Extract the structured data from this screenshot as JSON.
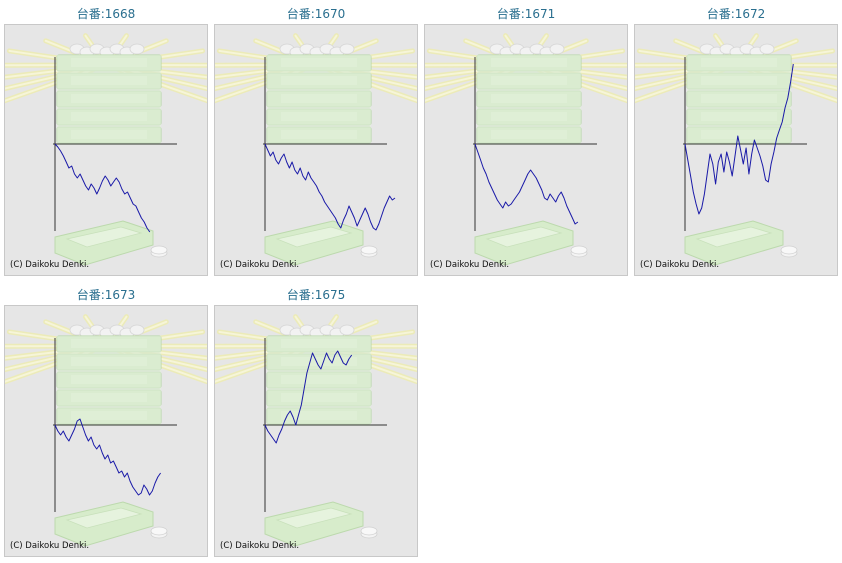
{
  "copyright": "(C) Daikoku Denki.",
  "colors": {
    "title": "#2a6f8f",
    "line": "#1a1aa8",
    "panel_bg": "#e6e6e6"
  },
  "chart_data": [
    {
      "type": "line",
      "title": "台番:1668",
      "y": [
        0,
        -3,
        -7,
        -12,
        -18,
        -24,
        -22,
        -30,
        -34,
        -30,
        -36,
        -42,
        -46,
        -40,
        -44,
        -50,
        -44,
        -37,
        -32,
        -36,
        -42,
        -38,
        -34,
        -38,
        -45,
        -50,
        -48,
        -54,
        -60,
        -62,
        -68,
        -74,
        -78,
        -84,
        -88
      ]
    },
    {
      "type": "line",
      "title": "台番:1670",
      "y": [
        0,
        -6,
        -12,
        -8,
        -16,
        -20,
        -14,
        -10,
        -18,
        -24,
        -18,
        -26,
        -30,
        -24,
        -32,
        -36,
        -28,
        -34,
        -38,
        -42,
        -48,
        -52,
        -58,
        -62,
        -66,
        -70,
        -74,
        -80,
        -84,
        -76,
        -70,
        -62,
        -68,
        -74,
        -82,
        -76,
        -70,
        -64,
        -70,
        -78,
        -84,
        -86,
        -80,
        -72,
        -64,
        -58,
        -52,
        -56,
        -54
      ]
    },
    {
      "type": "line",
      "title": "台番:1671",
      "y": [
        0,
        -8,
        -16,
        -24,
        -30,
        -38,
        -44,
        -50,
        -56,
        -60,
        -64,
        -58,
        -62,
        -60,
        -56,
        -52,
        -48,
        -42,
        -36,
        -30,
        -26,
        -30,
        -34,
        -40,
        -46,
        -54,
        -56,
        -50,
        -54,
        -58,
        -52,
        -48,
        -54,
        -62,
        -68,
        -74,
        -80,
        -78
      ]
    },
    {
      "type": "line",
      "title": "台番:1672",
      "y": [
        0,
        -16,
        -32,
        -48,
        -60,
        -70,
        -64,
        -50,
        -30,
        -10,
        -20,
        -40,
        -18,
        -10,
        -28,
        -8,
        -18,
        -32,
        -12,
        8,
        -6,
        -20,
        -4,
        -30,
        -10,
        4,
        -4,
        -12,
        -22,
        -36,
        -38,
        -20,
        -8,
        6,
        14,
        22,
        36,
        46,
        62,
        80
      ]
    },
    {
      "type": "line",
      "title": "台番:1673",
      "y": [
        0,
        -6,
        -10,
        -6,
        -12,
        -16,
        -10,
        -4,
        4,
        6,
        -2,
        -10,
        -16,
        -12,
        -20,
        -24,
        -20,
        -28,
        -34,
        -30,
        -38,
        -36,
        -42,
        -48,
        -46,
        -52,
        -48,
        -56,
        -62,
        -66,
        -70,
        -68,
        -60,
        -64,
        -70,
        -66,
        -58,
        -52,
        -48
      ]
    },
    {
      "type": "line",
      "title": "台番:1675",
      "y": [
        0,
        -6,
        -10,
        -14,
        -18,
        -10,
        -4,
        4,
        10,
        14,
        8,
        0,
        10,
        20,
        36,
        52,
        62,
        72,
        66,
        60,
        56,
        64,
        72,
        66,
        62,
        70,
        74,
        68,
        62,
        60,
        66,
        70
      ]
    }
  ]
}
